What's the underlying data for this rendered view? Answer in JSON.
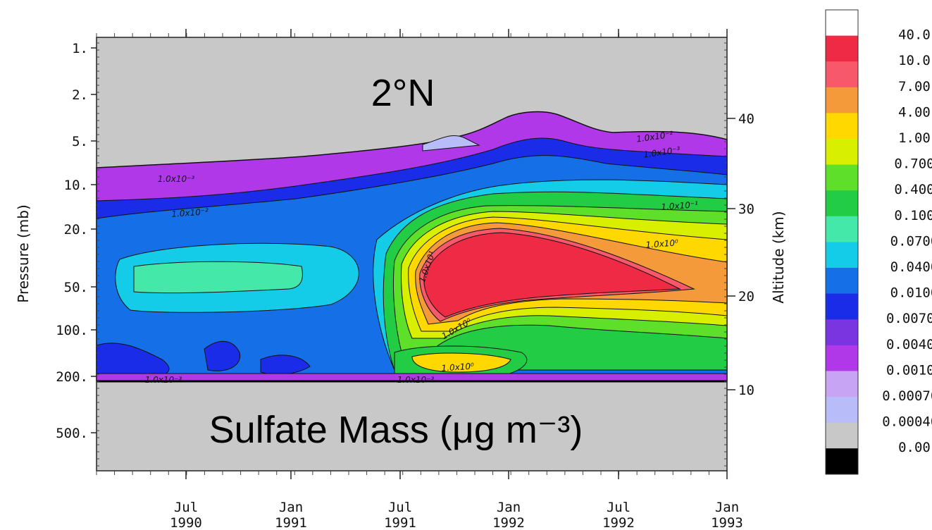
{
  "chart_data": {
    "type": "heatmap",
    "title": "2°N",
    "subtitle": "Sulfate Mass (μg m⁻³)",
    "ylabel": "Pressure (mb)",
    "y2label": "Altitude (km)",
    "yscale": "log",
    "y_ticks": [
      "1.",
      "2.",
      "5.",
      "10.",
      "20.",
      "50.",
      "100.",
      "200.",
      "500."
    ],
    "y2_ticks": [
      "40",
      "30",
      "20",
      "10"
    ],
    "x_ticks": [
      {
        "month": "Jul",
        "year": "1990"
      },
      {
        "month": "Jan",
        "year": "1991"
      },
      {
        "month": "Jul",
        "year": "1991"
      },
      {
        "month": "Jan",
        "year": "1992"
      },
      {
        "month": "Jul",
        "year": "1992"
      },
      {
        "month": "Jan",
        "year": "1993"
      }
    ],
    "contour_labels": [
      "1.0x10⁻³",
      "1.0x10⁻²",
      "1.0x10⁻²",
      "1.0x10⁻³",
      "1.0x10⁻¹",
      "1.0x10⁰",
      "1.0x10¹",
      "1.0x10⁰",
      "1.0x10⁰",
      "1.0x10⁻³",
      "1.0x10⁻³"
    ],
    "legend": [
      {
        "label": "40.0",
        "color": "#ffffff"
      },
      {
        "label": "10.0",
        "color": "#ee2a44"
      },
      {
        "label": "7.00",
        "color": "#f7586a"
      },
      {
        "label": "4.00",
        "color": "#f59a3a"
      },
      {
        "label": "1.00",
        "color": "#ffd800"
      },
      {
        "label": "0.700",
        "color": "#d8f000"
      },
      {
        "label": "0.400",
        "color": "#5ee02a"
      },
      {
        "label": "0.100",
        "color": "#22cc44"
      },
      {
        "label": "0.0700",
        "color": "#44e8a8"
      },
      {
        "label": "0.0400",
        "color": "#14cce8"
      },
      {
        "label": "0.0100",
        "color": "#1570e8"
      },
      {
        "label": "0.00700",
        "color": "#1a2ce8"
      },
      {
        "label": "0.00400",
        "color": "#7a34e0"
      },
      {
        "label": "0.00100",
        "color": "#b038e8"
      },
      {
        "label": "0.000700",
        "color": "#c8a4f4"
      },
      {
        "label": "0.000400",
        "color": "#b8bcf8"
      },
      {
        "label": "0.00",
        "color": "#c8c8c8"
      },
      {
        "label": "",
        "color": "#000000"
      }
    ]
  }
}
